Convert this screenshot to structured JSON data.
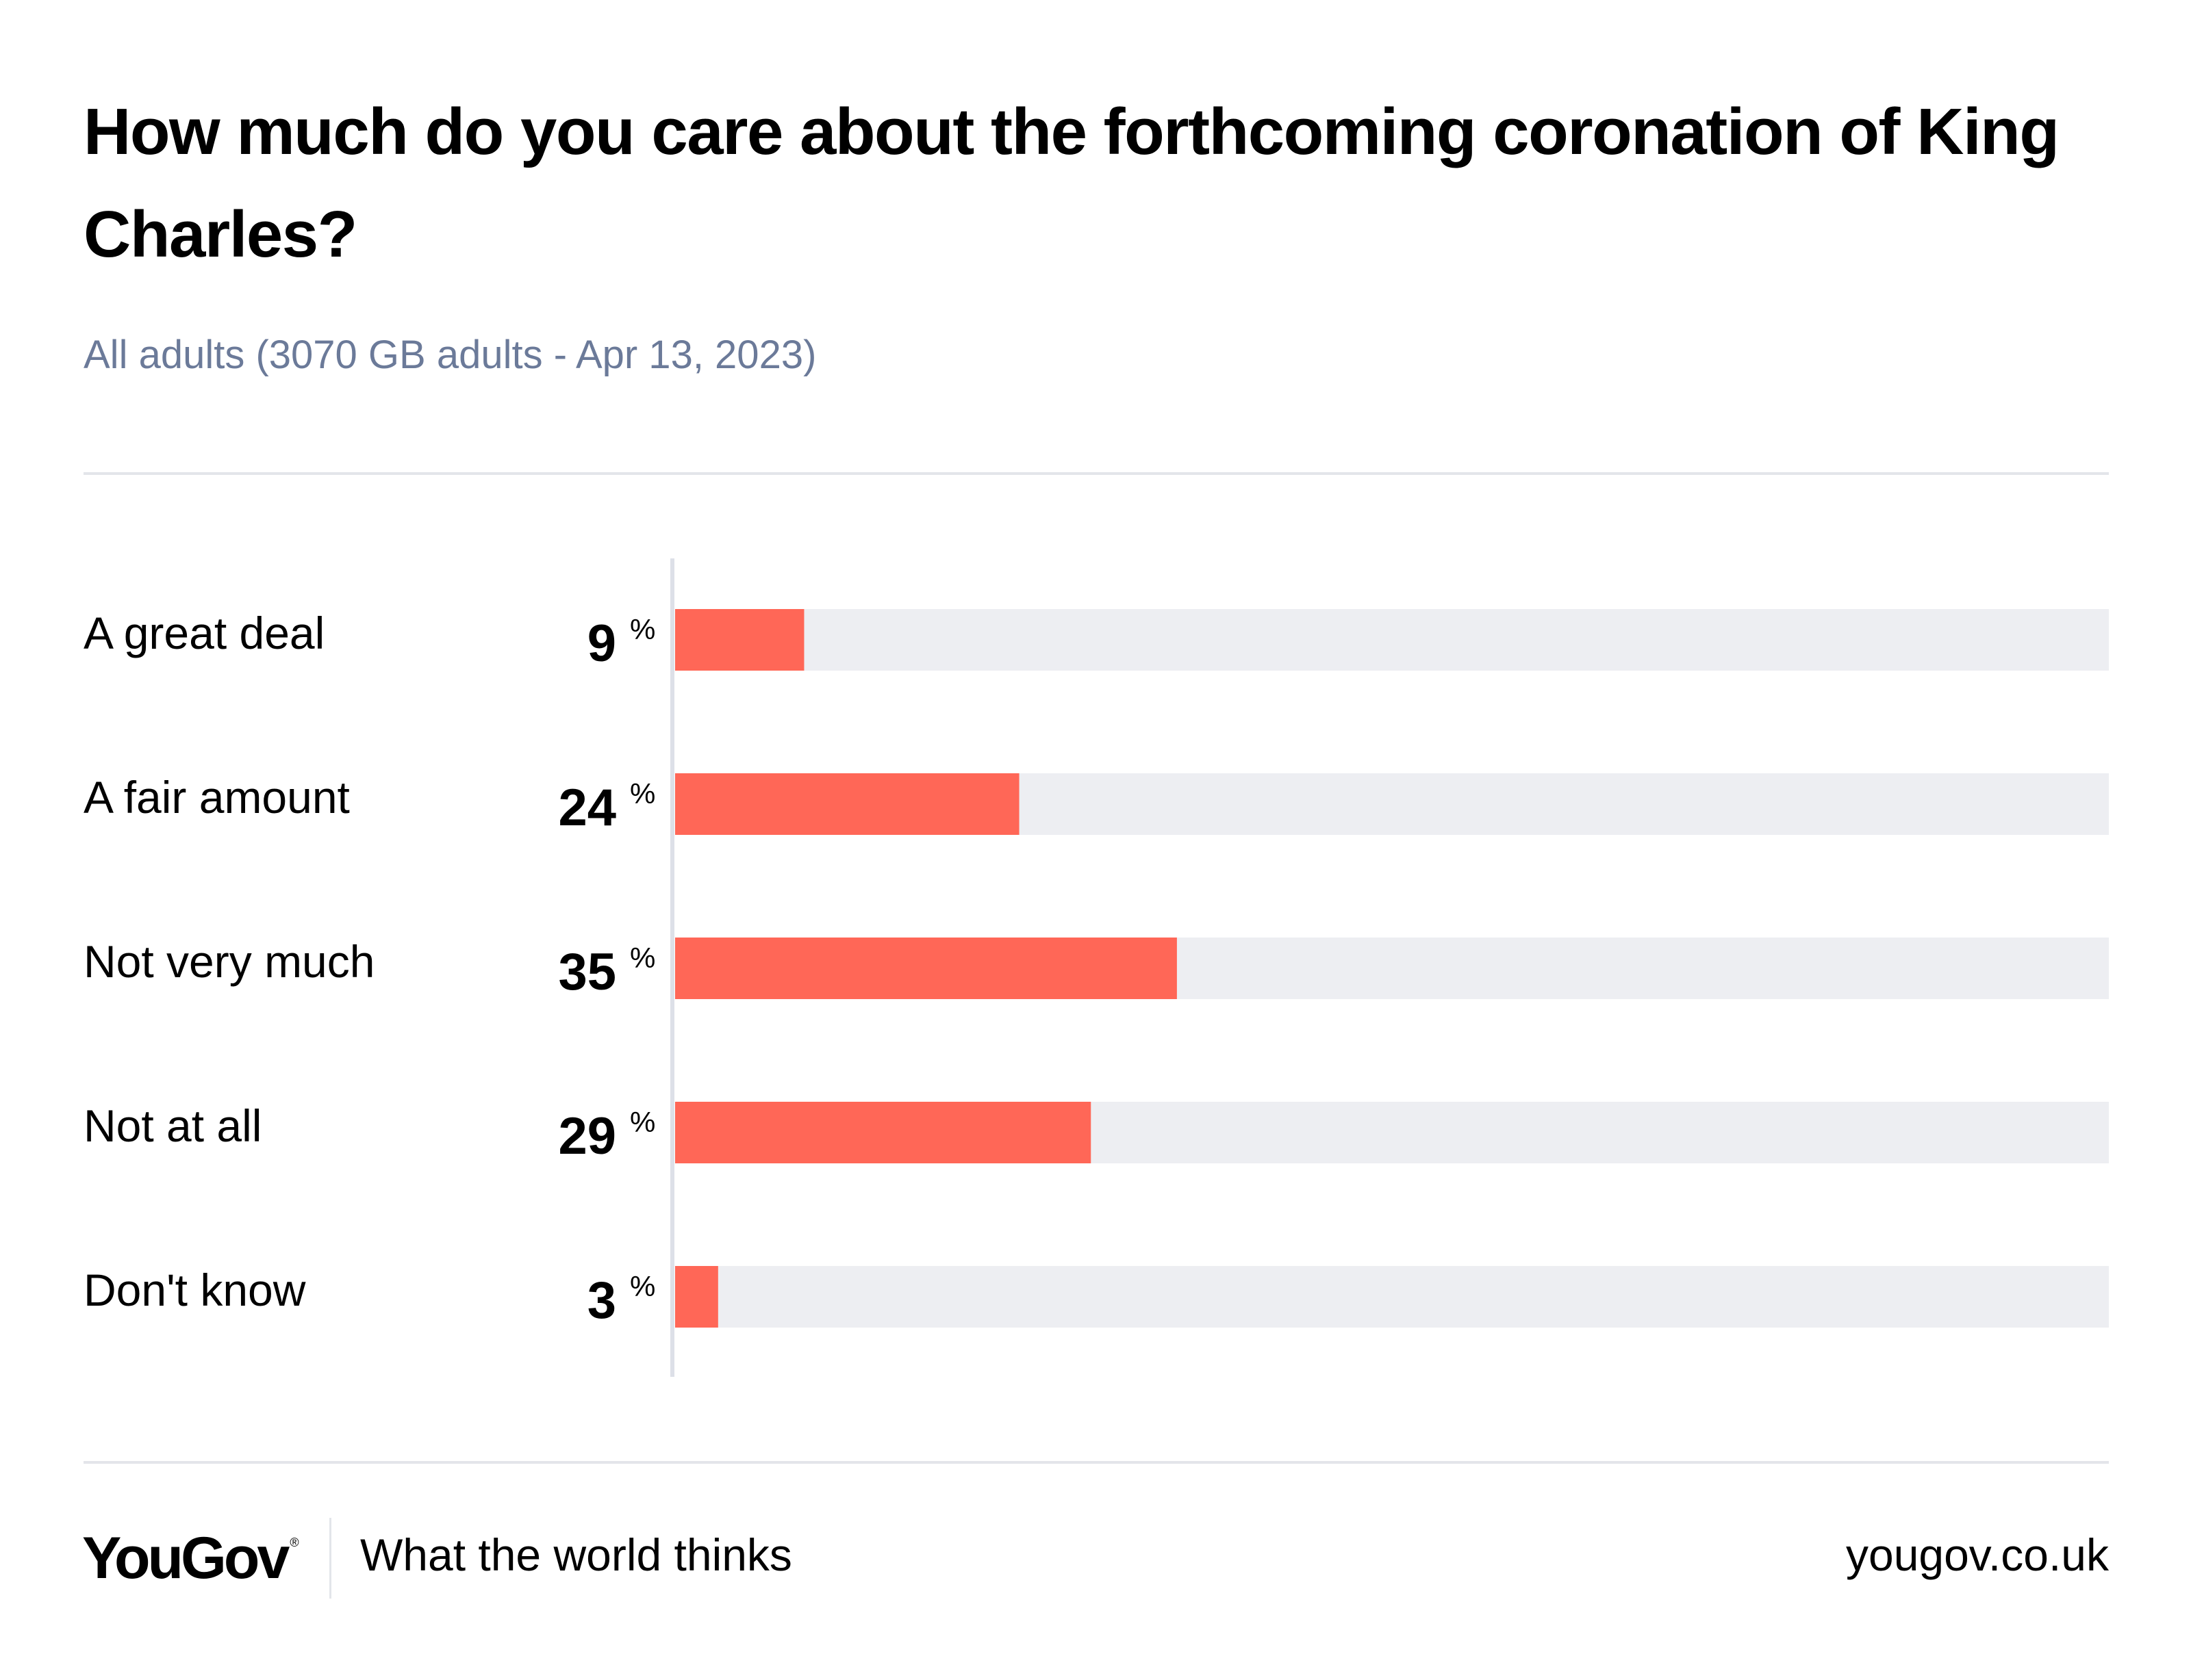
{
  "header": {
    "title": "How much do you care about the forthcoming coronation of King Charles?",
    "subtitle": "All adults (3070 GB adults - Apr 13, 2023)"
  },
  "colors": {
    "bar": "#ff6757",
    "track": "#edeef2",
    "axis": "#dde0e8",
    "label": "#000000"
  },
  "chart_data": {
    "type": "bar",
    "orientation": "horizontal",
    "title": "How much do you care about the forthcoming coronation of King Charles?",
    "subtitle": "All adults (3070 GB adults - Apr 13, 2023)",
    "categories": [
      "A great deal",
      "A fair amount",
      "Not very much",
      "Not at all",
      "Don't know"
    ],
    "values": [
      9,
      24,
      35,
      29,
      3
    ],
    "value_suffix": "%",
    "xlabel": "",
    "ylabel": "",
    "xlim": [
      0,
      100
    ],
    "grid": false,
    "legend": "none"
  },
  "footer": {
    "logo": "YouGov",
    "logo_mark": "®",
    "tagline": "What the world thinks",
    "url": "yougov.co.uk"
  }
}
